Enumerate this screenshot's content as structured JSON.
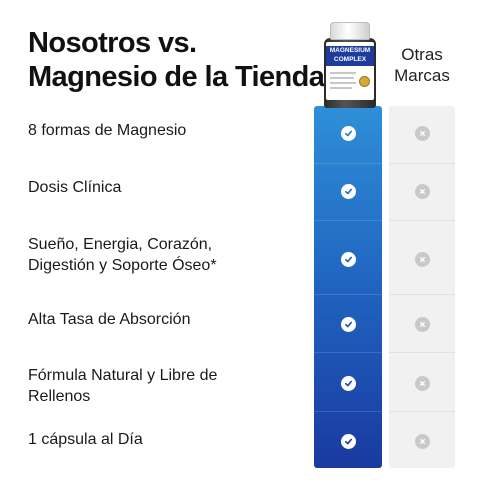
{
  "title": {
    "line1": "Nosotros vs.",
    "line2": "Magnesio de la Tienda"
  },
  "columns": {
    "others_line1": "Otras",
    "others_line2": "Marcas"
  },
  "product": {
    "label_line1": "MAGNESIUM",
    "label_line2": "COMPLEX"
  },
  "features": [
    {
      "line1": "8 formas de Magnesio",
      "line2": ""
    },
    {
      "line1": "Dosis Clínica",
      "line2": ""
    },
    {
      "line1": "Sueño, Energia, Corazón,",
      "line2": "Digestión y Soporte Óseo*"
    },
    {
      "line1": "Alta Tasa de Absorción",
      "line2": ""
    },
    {
      "line1": "Fórmula Natural y Libre de",
      "line2": "Rellenos"
    },
    {
      "line1": "1 cápsula al Día",
      "line2": ""
    }
  ],
  "icons": {
    "ours": "check-icon",
    "theirs": "x-icon"
  },
  "colors": {
    "ours_top": "#2f8fd8",
    "ours_bottom": "#1a3aa0",
    "theirs_bg": "#f1f1f1",
    "x_icon": "#c9c9c9"
  }
}
